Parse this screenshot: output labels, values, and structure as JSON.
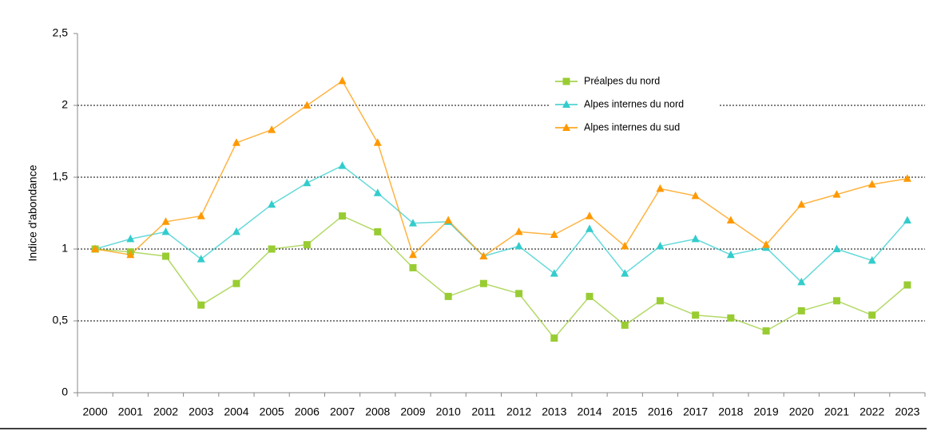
{
  "chart_data": {
    "type": "line",
    "y_label": "Indice d'abondance",
    "categories": [
      "2000",
      "2001",
      "2002",
      "2003",
      "2004",
      "2005",
      "2006",
      "2007",
      "2008",
      "2009",
      "2010",
      "2011",
      "2012",
      "2013",
      "2014",
      "2015",
      "2016",
      "2017",
      "2018",
      "2019",
      "2020",
      "2021",
      "2022",
      "2023"
    ],
    "series": [
      {
        "name": "Préalpes du nord",
        "color": "#99cc33",
        "marker": "square",
        "values": [
          1.0,
          0.98,
          0.95,
          0.61,
          0.76,
          1.0,
          1.03,
          1.23,
          1.12,
          0.87,
          0.67,
          0.76,
          0.69,
          0.38,
          0.67,
          0.47,
          0.64,
          0.54,
          0.52,
          0.43,
          0.57,
          0.64,
          0.54,
          0.75
        ]
      },
      {
        "name": "Alpes internes du nord",
        "color": "#33cccc",
        "marker": "triangle",
        "values": [
          1.0,
          1.07,
          1.12,
          0.93,
          1.12,
          1.31,
          1.46,
          1.58,
          1.39,
          1.18,
          1.19,
          0.95,
          1.02,
          0.83,
          1.14,
          0.83,
          1.02,
          1.07,
          0.96,
          1.01,
          0.77,
          1.0,
          0.92,
          1.2
        ]
      },
      {
        "name": "Alpes internes du sud",
        "color": "#ff9900",
        "marker": "triangle",
        "values": [
          1.0,
          0.96,
          1.19,
          1.23,
          1.74,
          1.83,
          2.0,
          2.17,
          1.74,
          0.96,
          1.2,
          0.95,
          1.12,
          1.1,
          1.23,
          1.02,
          1.42,
          1.37,
          1.2,
          1.03,
          1.31,
          1.38,
          1.45,
          1.49
        ]
      }
    ],
    "ylim": [
      0,
      2.5
    ],
    "yticks": [
      0,
      {
        "value": 0.5,
        "label": "0,5"
      },
      1,
      {
        "value": 1.5,
        "label": "1,5"
      },
      2,
      {
        "value": 2.5,
        "label": "2,5"
      }
    ],
    "grid": true,
    "legend": "top-center"
  }
}
